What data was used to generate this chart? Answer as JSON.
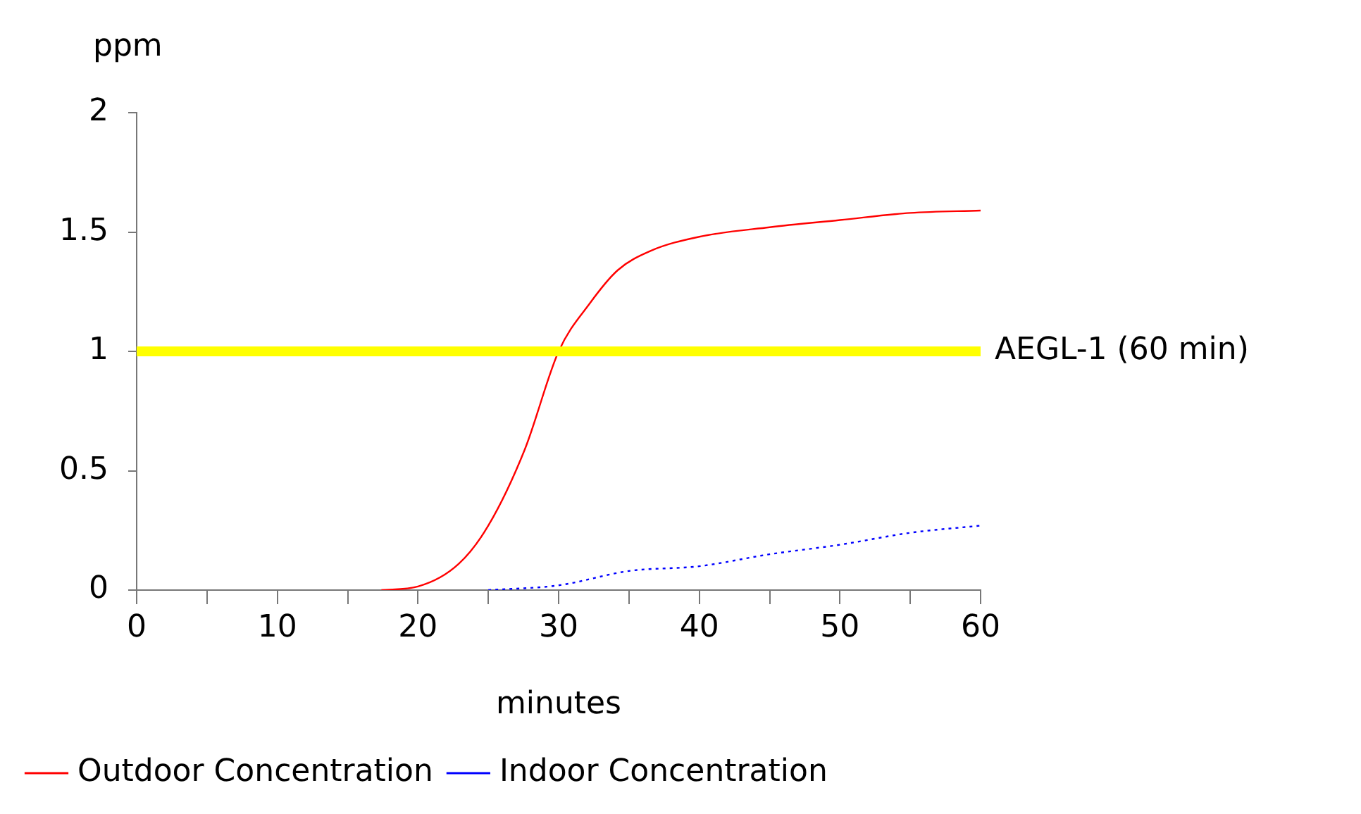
{
  "chart_data": {
    "type": "line",
    "xlabel": "minutes",
    "ylabel": "ppm",
    "xlim": [
      0,
      60
    ],
    "xticks": [
      0,
      {
        "value": 5,
        "label": null
      },
      10,
      {
        "value": 15,
        "label": null
      },
      20,
      {
        "value": 25,
        "label": null
      },
      30,
      {
        "value": 35,
        "label": null
      },
      40,
      {
        "value": 45,
        "label": null
      },
      50,
      {
        "value": 55,
        "label": null
      },
      60
    ],
    "ylim": [
      0,
      2
    ],
    "yticks": [
      0,
      0.5,
      1,
      1.5,
      2
    ],
    "grid": false,
    "legend": "bottom left",
    "marker": "none",
    "series": [
      {
        "name": "Outdoor Concentration",
        "color": "#ff0000",
        "line_style": "solid",
        "x": [
          17.4,
          20,
          22.9,
          25,
          27.6,
          30,
          32.2,
          34.2,
          36.5,
          40,
          45,
          50,
          55,
          60
        ],
        "values": [
          0,
          0.015,
          0.11,
          0.27,
          0.59,
          1.0,
          1.2,
          1.34,
          1.42,
          1.48,
          1.52,
          1.55,
          1.58,
          1.59
        ]
      },
      {
        "name": "Indoor Concentration",
        "color": "#0000ff",
        "line_style": "dotted",
        "x": [
          25,
          30,
          35,
          40,
          45,
          50,
          55,
          60
        ],
        "values": [
          0,
          0.02,
          0.08,
          0.1,
          0.15,
          0.19,
          0.24,
          0.27
        ]
      }
    ],
    "ref_lines": [
      {
        "axis": "y",
        "value": 1,
        "label": "AEGL-1 (60 min)",
        "color": "#ffff00"
      }
    ]
  }
}
